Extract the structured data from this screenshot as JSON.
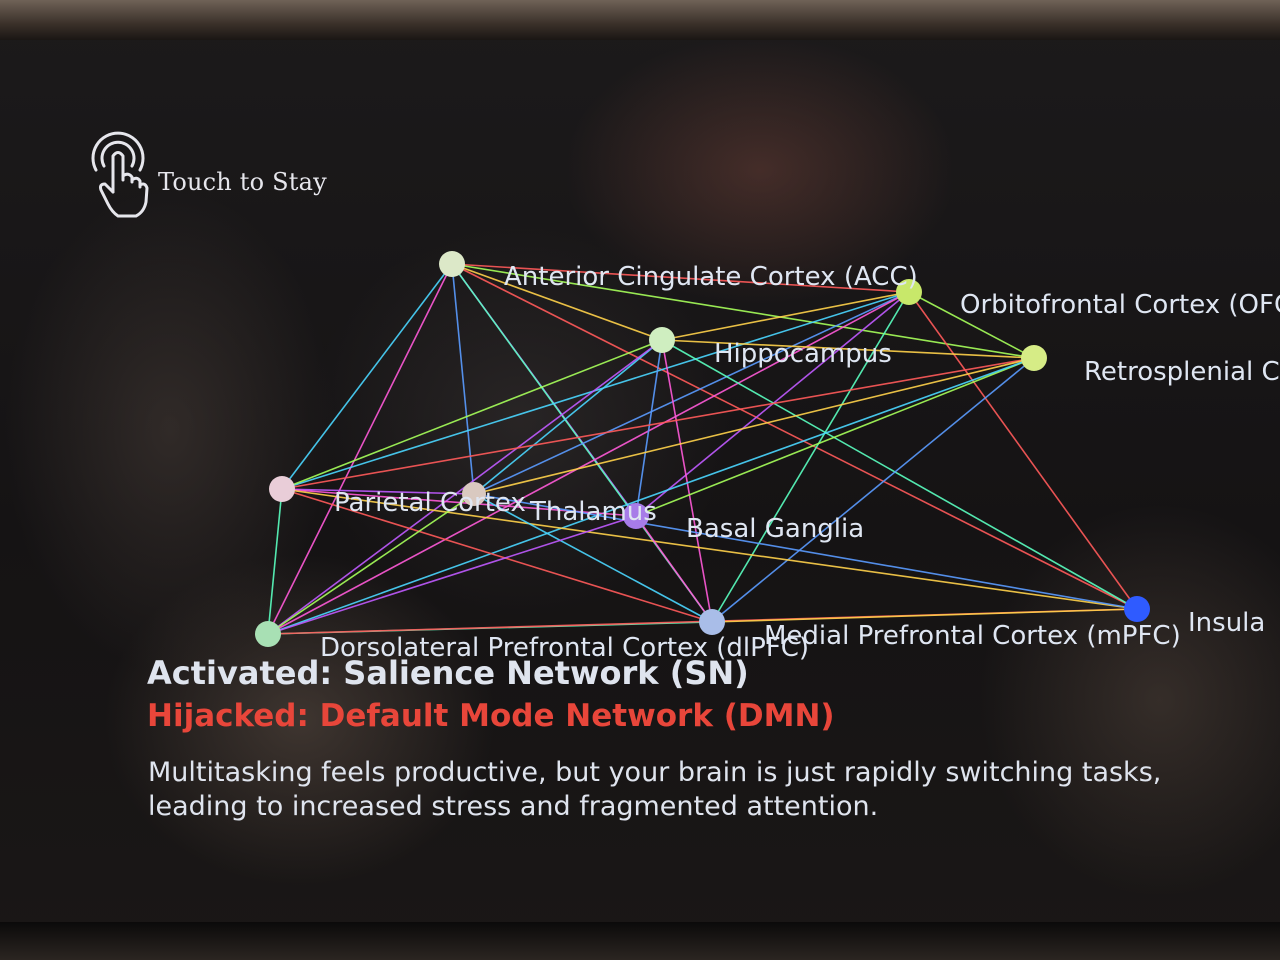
{
  "touch_button": {
    "label": "Touch to Stay",
    "icon": "touch-hand-icon"
  },
  "network": {
    "nodes": [
      {
        "id": "acc",
        "label": "Anterior Cingulate Cortex (ACC)",
        "color": "#dce8c8"
      },
      {
        "id": "ofc",
        "label": "Orbitofrontal Cortex (OFC)",
        "color": "#c8e86a"
      },
      {
        "id": "hippo",
        "label": "Hippocampus",
        "color": "#cfeec0"
      },
      {
        "id": "rsc",
        "label": "Retrosplenial Cortex",
        "color": "#d6ec86"
      },
      {
        "id": "parietal",
        "label": "Parietal Cortex",
        "color": "#e9cdd8"
      },
      {
        "id": "thalamus",
        "label": "Thalamus",
        "color": "#d9c9c0"
      },
      {
        "id": "bg",
        "label": "Basal Ganglia",
        "color": "#a77ce8"
      },
      {
        "id": "dlpfc",
        "label": "Dorsolateral Prefrontal Cortex (dlPFC)",
        "color": "#a8e0b4"
      },
      {
        "id": "mpfc",
        "label": "Medial Prefrontal Cortex (mPFC)",
        "color": "#a9bde8"
      },
      {
        "id": "insula",
        "label": "Insula",
        "color": "#2f5bff"
      }
    ],
    "edge_colors": [
      "#ff5a5a",
      "#ffd24a",
      "#a6ff5a",
      "#4ad6ff",
      "#5a9bff",
      "#c05aff",
      "#ff5ad8",
      "#5affc0"
    ],
    "edges": [
      [
        "acc",
        "ofc"
      ],
      [
        "acc",
        "hippo"
      ],
      [
        "acc",
        "rsc"
      ],
      [
        "acc",
        "parietal"
      ],
      [
        "acc",
        "thalamus"
      ],
      [
        "acc",
        "bg"
      ],
      [
        "acc",
        "dlpfc"
      ],
      [
        "acc",
        "mpfc"
      ],
      [
        "acc",
        "insula"
      ],
      [
        "ofc",
        "hippo"
      ],
      [
        "ofc",
        "rsc"
      ],
      [
        "ofc",
        "parietal"
      ],
      [
        "ofc",
        "thalamus"
      ],
      [
        "ofc",
        "bg"
      ],
      [
        "ofc",
        "dlpfc"
      ],
      [
        "ofc",
        "mpfc"
      ],
      [
        "ofc",
        "insula"
      ],
      [
        "hippo",
        "rsc"
      ],
      [
        "hippo",
        "parietal"
      ],
      [
        "hippo",
        "thalamus"
      ],
      [
        "hippo",
        "bg"
      ],
      [
        "hippo",
        "dlpfc"
      ],
      [
        "hippo",
        "mpfc"
      ],
      [
        "hippo",
        "insula"
      ],
      [
        "rsc",
        "parietal"
      ],
      [
        "rsc",
        "thalamus"
      ],
      [
        "rsc",
        "bg"
      ],
      [
        "rsc",
        "dlpfc"
      ],
      [
        "rsc",
        "mpfc"
      ],
      [
        "parietal",
        "thalamus"
      ],
      [
        "parietal",
        "bg"
      ],
      [
        "parietal",
        "dlpfc"
      ],
      [
        "parietal",
        "mpfc"
      ],
      [
        "parietal",
        "insula"
      ],
      [
        "thalamus",
        "dlpfc"
      ],
      [
        "thalamus",
        "mpfc"
      ],
      [
        "thalamus",
        "insula"
      ],
      [
        "bg",
        "dlpfc"
      ],
      [
        "bg",
        "mpfc"
      ],
      [
        "dlpfc",
        "mpfc"
      ],
      [
        "dlpfc",
        "insula"
      ],
      [
        "mpfc",
        "insula"
      ]
    ]
  },
  "status": {
    "activated": "Activated: Salience Network (SN)",
    "hijacked": "Hijacked: Default Mode Network (DMN)"
  },
  "description": {
    "line1": "Multitasking feels productive, but your brain is just rapidly switching tasks,",
    "line2": "leading to increased stress and fragmented attention."
  },
  "colors": {
    "activated_text": "#dfe4ee",
    "hijacked_text": "#e8463a",
    "label_text": "#dfe6f2"
  }
}
